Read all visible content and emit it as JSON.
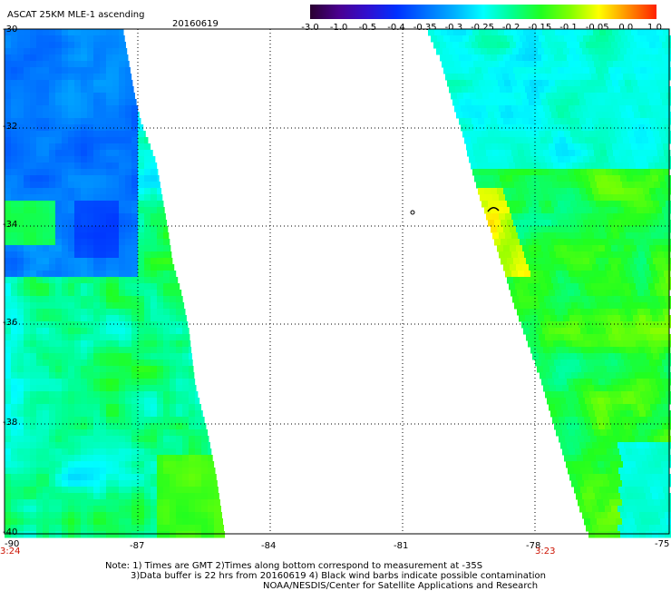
{
  "title": "ASCAT 25KM MLE-1 ascending",
  "date": "20160619",
  "colorbar": {
    "labels": [
      "-3.0",
      "-1.0",
      "-0.5",
      "-0.4",
      "-0.35",
      "-0.3",
      "-0.25",
      "-0.2",
      "-0.15",
      "-0.1",
      "-0.05",
      "0.0",
      "1.0"
    ],
    "colors": [
      "#2a0030",
      "#4a0090",
      "#3010d0",
      "#0030ff",
      "#0070ff",
      "#00b0ff",
      "#00ffff",
      "#00ff90",
      "#20ff20",
      "#80ff00",
      "#ffff00",
      "#ff9000",
      "#ff2000"
    ]
  },
  "axes": {
    "y_labels": [
      "-30",
      "-32",
      "-34",
      "-36",
      "-38",
      "-40"
    ],
    "x_labels": [
      "-90",
      "-87",
      "-84",
      "-81",
      "-78",
      "-75"
    ]
  },
  "times": {
    "left": "3:24",
    "right": "3:23"
  },
  "notes": [
    "Note: 1) Times are GMT 2)Times along bottom correspond to measurement at -35S",
    "3)Data buffer is 22 hrs from 20160619 4) Black wind barbs indicate possible contamination",
    "NOAA/NESDIS/Center for Satellite Applications and Research"
  ]
}
